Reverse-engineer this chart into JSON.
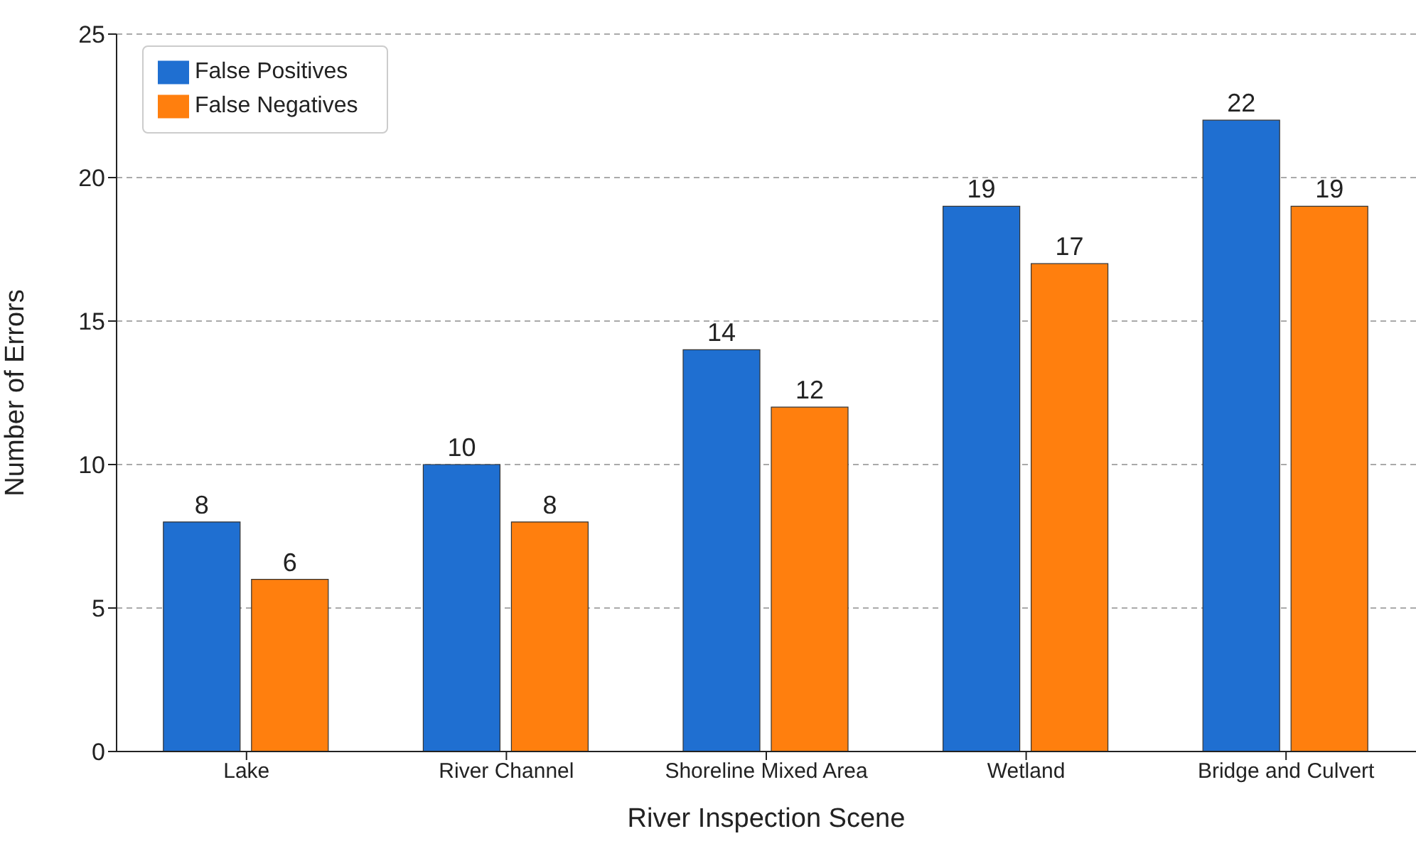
{
  "chart_data": {
    "type": "bar",
    "xlabel": "River Inspection Scene",
    "ylabel": "Number of Errors",
    "categories": [
      "Lake",
      "River Channel",
      "Shoreline Mixed Area",
      "Wetland",
      "Bridge and Culvert"
    ],
    "series": [
      {
        "name": "False Positives",
        "color": "#1f6fd1",
        "values": [
          8,
          10,
          14,
          19,
          22
        ]
      },
      {
        "name": "False Negatives",
        "color": "#ff7f0e",
        "values": [
          6,
          8,
          12,
          17,
          19
        ]
      }
    ],
    "ylim": [
      0,
      25
    ],
    "yticks": [
      0,
      5,
      10,
      15,
      20,
      25
    ],
    "grid": "y",
    "legend": "top left",
    "data_labels": true
  }
}
